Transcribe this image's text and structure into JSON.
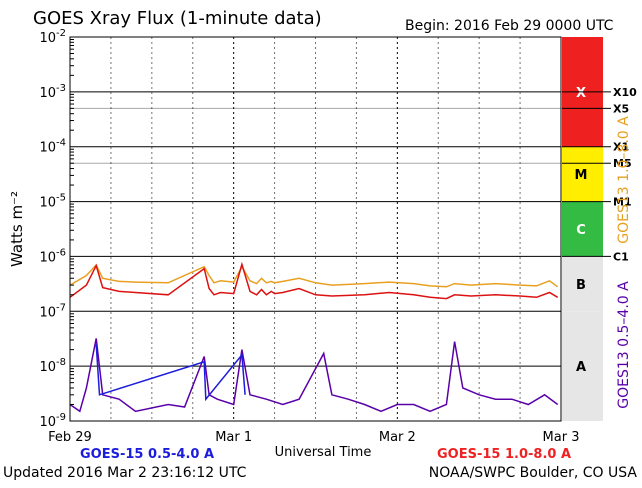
{
  "header": {
    "title": "GOES Xray Flux (1-minute data)",
    "begin": "Begin:  2016 Feb 29  0000 UTC"
  },
  "footer": {
    "updated": "Updated 2016 Mar  2 23:16:12 UTC",
    "credit": "NOAA/SWPC Boulder, CO USA"
  },
  "chart_data": {
    "type": "line",
    "title": "GOES Xray Flux (1-minute data)",
    "xlabel": "Universal Time",
    "ylabel": "Watts m⁻²",
    "y_scale": "log",
    "ylim": [
      1e-09,
      0.01
    ],
    "xlim": [
      "2016-02-29 00:00",
      "2016-03-03 00:00"
    ],
    "x_tick_labels": [
      "Feb 29",
      "Mar 1",
      "Mar 2",
      "Mar 3"
    ],
    "y_tick_labels": [
      {
        "base": "10",
        "exp": "-9"
      },
      {
        "base": "10",
        "exp": "-8"
      },
      {
        "base": "10",
        "exp": "-7"
      },
      {
        "base": "10",
        "exp": "-6"
      },
      {
        "base": "10",
        "exp": "-5"
      },
      {
        "base": "10",
        "exp": "-4"
      },
      {
        "base": "10",
        "exp": "-3"
      },
      {
        "base": "10",
        "exp": "-2"
      }
    ],
    "right_axis_labels": {
      "top": "GOES13 1.0–8.0 A",
      "bottom": "GOES13 0.5–4.0 A"
    },
    "class_bands": [
      {
        "label": "X",
        "range": [
          0.0001,
          0.01
        ],
        "color": "#ee2020"
      },
      {
        "label": "M",
        "range": [
          1e-05,
          0.0001
        ],
        "color": "#ffee00"
      },
      {
        "label": "C",
        "range": [
          1e-06,
          1e-05
        ],
        "color": "#33bb44"
      },
      {
        "label": "B",
        "range": [
          1e-07,
          1e-06
        ],
        "color": "#e6e6e6"
      },
      {
        "label": "A",
        "range": [
          1e-09,
          1e-07
        ],
        "color": "#e6e6e6"
      }
    ],
    "flare_levels": [
      {
        "label": "X10",
        "value": 0.001
      },
      {
        "label": "X5",
        "value": 0.0005
      },
      {
        "label": "X1",
        "value": 0.0001
      },
      {
        "label": "M5",
        "value": 5e-05
      },
      {
        "label": "M1",
        "value": 1e-05
      },
      {
        "label": "C1",
        "value": 1e-06
      }
    ],
    "legend": [
      {
        "name": "GOES-15 0.5-4.0 A",
        "color": "#1c1cdd",
        "position": "bottom-left"
      },
      {
        "name": "GOES-15 1.0-8.0 A",
        "color": "#ee2222",
        "position": "bottom-right"
      }
    ],
    "series": [
      {
        "name": "GOES13 1.0–8.0 A",
        "color": "#e8a020",
        "x_days": [
          0.0,
          0.1,
          0.16,
          0.2,
          0.3,
          0.4,
          0.6,
          0.82,
          0.85,
          0.88,
          0.92,
          1.0,
          1.05,
          1.1,
          1.14,
          1.17,
          1.2,
          1.23,
          1.25,
          1.3,
          1.4,
          1.5,
          1.6,
          1.8,
          1.95,
          2.1,
          2.2,
          2.3,
          2.35,
          2.45,
          2.6,
          2.75,
          2.85,
          2.93,
          2.98
        ],
        "y": [
          3e-07,
          4.5e-07,
          7e-07,
          4e-07,
          3.5e-07,
          3.4e-07,
          3.3e-07,
          6.5e-07,
          4.5e-07,
          3.3e-07,
          3.6e-07,
          3.4e-07,
          6.5e-07,
          3.6e-07,
          3.2e-07,
          4e-07,
          3.3e-07,
          3.5e-07,
          3.3e-07,
          3.5e-07,
          4e-07,
          3.3e-07,
          3e-07,
          3.2e-07,
          3.4e-07,
          3.2e-07,
          2.9e-07,
          2.8e-07,
          3.2e-07,
          3e-07,
          3.2e-07,
          3e-07,
          2.9e-07,
          3.6e-07,
          2.8e-07
        ]
      },
      {
        "name": "GOES-15 1.0-8.0 A",
        "color": "#dd1111",
        "x_days": [
          0.0,
          0.1,
          0.16,
          0.2,
          0.3,
          0.4,
          0.6,
          0.82,
          0.85,
          0.88,
          0.92,
          1.0,
          1.05,
          1.1,
          1.14,
          1.17,
          1.2,
          1.23,
          1.25,
          1.3,
          1.4,
          1.5,
          1.6,
          1.8,
          1.95,
          2.1,
          2.2,
          2.3,
          2.35,
          2.45,
          2.6,
          2.75,
          2.85,
          2.93,
          2.98
        ],
        "y": [
          1.8e-07,
          3e-07,
          6.8e-07,
          2.7e-07,
          2.3e-07,
          2.2e-07,
          2e-07,
          6e-07,
          2.6e-07,
          2e-07,
          2.2e-07,
          2.1e-07,
          7.2e-07,
          2.3e-07,
          2e-07,
          2.5e-07,
          2e-07,
          2.3e-07,
          2.1e-07,
          2.2e-07,
          2.6e-07,
          2e-07,
          1.9e-07,
          2e-07,
          2.2e-07,
          2e-07,
          1.8e-07,
          1.7e-07,
          2e-07,
          1.9e-07,
          2e-07,
          1.9e-07,
          1.8e-07,
          2.2e-07,
          1.8e-07
        ]
      },
      {
        "name": "GOES13 0.5–4.0 A",
        "color": "#5a00a8",
        "x_days": [
          0.0,
          0.06,
          0.1,
          0.16,
          0.2,
          0.3,
          0.4,
          0.6,
          0.7,
          0.82,
          0.85,
          0.9,
          1.0,
          1.05,
          1.1,
          1.2,
          1.3,
          1.4,
          1.55,
          1.6,
          1.7,
          1.8,
          1.9,
          2.0,
          2.1,
          2.2,
          2.3,
          2.35,
          2.4,
          2.5,
          2.6,
          2.7,
          2.8,
          2.9,
          2.98
        ],
        "y": [
          2e-09,
          1.5e-09,
          4e-09,
          3.2e-08,
          3e-09,
          2.5e-09,
          1.5e-09,
          2e-09,
          1.8e-09,
          1.5e-08,
          3e-09,
          2.5e-09,
          2e-09,
          2e-08,
          3e-09,
          2.5e-09,
          2e-09,
          2.5e-09,
          1.7e-08,
          3e-09,
          2.5e-09,
          2e-09,
          1.5e-09,
          2e-09,
          2e-09,
          1.5e-09,
          2e-09,
          2.8e-08,
          4e-09,
          3e-09,
          2.5e-09,
          2.5e-09,
          2e-09,
          3e-09,
          2e-09
        ]
      },
      {
        "name": "GOES-15 0.5-4.0 A",
        "color": "#1c1cdd",
        "x_days": [
          0.16,
          0.18,
          0.82,
          0.83,
          1.05,
          1.07
        ],
        "y": [
          2.5e-08,
          3e-09,
          1.2e-08,
          2.5e-09,
          1.6e-08,
          3e-09
        ]
      }
    ]
  }
}
